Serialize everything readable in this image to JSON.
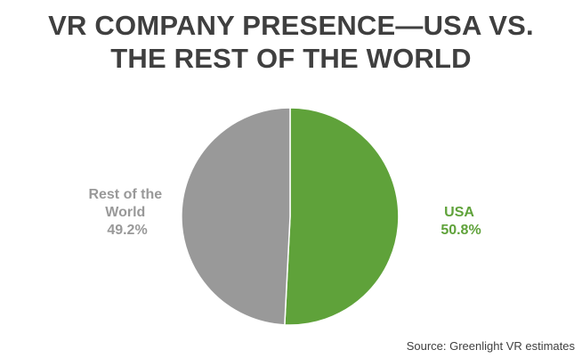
{
  "chart_data": {
    "type": "pie",
    "title_lines": [
      "VR COMPANY PRESENCE—USA VS.",
      "THE REST OF THE WORLD"
    ],
    "slices": [
      {
        "name": "USA",
        "value": 50.8,
        "label_lines": [
          "USA",
          "50.8%"
        ],
        "color": "#5fa23a"
      },
      {
        "name": "Rest of the World",
        "value": 49.2,
        "label_lines": [
          "Rest of the",
          "World",
          "49.2%"
        ],
        "color": "#999999"
      }
    ],
    "start_angle_deg": 0,
    "direction": "clockwise",
    "slice_border_color": "#ffffff",
    "legend": "none"
  },
  "source": "Source:  Greenlight VR estimates"
}
